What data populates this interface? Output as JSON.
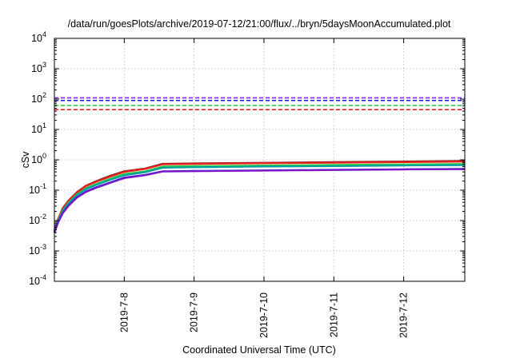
{
  "chart_data": {
    "type": "line",
    "title": "/data/run/goesPlots/archive/2019-07-12/21:00/flux/../bryn/5daysMoonAccumulated.plot",
    "xlabel": "Coordinated Universal Time (UTC)",
    "ylabel": "cSv",
    "y_scale": "log",
    "ylim": [
      0.0001,
      10000
    ],
    "xlim": [
      0.0,
      5.875
    ],
    "x_unit_note": "days from 2019-07-07 00:00 UTC",
    "grid": true,
    "y_ticks": [
      {
        "value": 0.0001,
        "base": "10",
        "exp": "-4"
      },
      {
        "value": 0.001,
        "base": "10",
        "exp": "-3"
      },
      {
        "value": 0.01,
        "base": "10",
        "exp": "-2"
      },
      {
        "value": 0.1,
        "base": "10",
        "exp": "-1"
      },
      {
        "value": 1,
        "base": "10",
        "exp": "0"
      },
      {
        "value": 10,
        "base": "10",
        "exp": "1"
      },
      {
        "value": 100,
        "base": "10",
        "exp": "2"
      },
      {
        "value": 1000,
        "base": "10",
        "exp": "3"
      },
      {
        "value": 10000,
        "base": "10",
        "exp": "4"
      }
    ],
    "x_ticks": [
      {
        "value": 1,
        "label": "2019-7-8"
      },
      {
        "value": 2,
        "label": "2019-7-9"
      },
      {
        "value": 3,
        "label": "2019-7-10"
      },
      {
        "value": 4,
        "label": "2019-7-11"
      },
      {
        "value": 5,
        "label": "2019-7-12"
      }
    ],
    "thresholds": [
      {
        "value": 110,
        "color": "#8b2be2"
      },
      {
        "value": 90,
        "color": "#1f1fd6"
      },
      {
        "value": 62,
        "color": "#2ecc40"
      },
      {
        "value": 45,
        "color": "#e8231f"
      }
    ],
    "series": [
      {
        "color": "#8b1a1a",
        "x": [
          0.0,
          0.05,
          0.12,
          0.2,
          0.32,
          0.45,
          0.6,
          0.8,
          1.0,
          1.3,
          1.55,
          2.0,
          3.0,
          4.0,
          5.0,
          5.875
        ],
        "y": [
          0.0045,
          0.011,
          0.026,
          0.045,
          0.085,
          0.14,
          0.2,
          0.3,
          0.42,
          0.52,
          0.74,
          0.76,
          0.8,
          0.84,
          0.88,
          0.92
        ]
      },
      {
        "color": "#e8231f",
        "x": [
          0.0,
          0.05,
          0.12,
          0.2,
          0.32,
          0.45,
          0.6,
          0.8,
          1.0,
          1.3,
          1.55,
          2.0,
          3.0,
          4.0,
          5.0,
          5.875
        ],
        "y": [
          0.0045,
          0.011,
          0.025,
          0.043,
          0.082,
          0.135,
          0.19,
          0.28,
          0.4,
          0.5,
          0.71,
          0.73,
          0.77,
          0.8,
          0.84,
          0.87
        ]
      },
      {
        "color": "#2ecc40",
        "x": [
          0.0,
          0.05,
          0.12,
          0.2,
          0.32,
          0.45,
          0.6,
          0.8,
          1.0,
          1.3,
          1.55,
          2.0,
          3.0,
          4.0,
          5.0,
          5.875
        ],
        "y": [
          0.0042,
          0.01,
          0.022,
          0.038,
          0.072,
          0.115,
          0.16,
          0.24,
          0.34,
          0.42,
          0.6,
          0.62,
          0.65,
          0.68,
          0.71,
          0.73
        ]
      },
      {
        "color": "#00a0a0",
        "x": [
          0.0,
          0.05,
          0.12,
          0.2,
          0.32,
          0.45,
          0.6,
          0.8,
          1.0,
          1.3,
          1.55,
          2.0,
          3.0,
          4.0,
          5.0,
          5.875
        ],
        "y": [
          0.0042,
          0.0095,
          0.021,
          0.036,
          0.068,
          0.108,
          0.15,
          0.22,
          0.31,
          0.39,
          0.55,
          0.57,
          0.6,
          0.62,
          0.65,
          0.67
        ]
      },
      {
        "color": "#1f1fd6",
        "x": [
          0.0,
          0.05,
          0.12,
          0.2,
          0.32,
          0.45,
          0.6,
          0.8,
          1.0,
          1.3,
          1.55,
          2.0,
          3.0,
          4.0,
          5.0,
          5.875
        ],
        "y": [
          0.004,
          0.0085,
          0.018,
          0.031,
          0.058,
          0.09,
          0.125,
          0.18,
          0.26,
          0.32,
          0.42,
          0.43,
          0.45,
          0.47,
          0.49,
          0.5
        ]
      },
      {
        "color": "#7a18c7",
        "x": [
          0.0,
          0.05,
          0.12,
          0.2,
          0.32,
          0.45,
          0.6,
          0.8,
          1.0,
          1.3,
          1.55,
          2.0,
          3.0,
          4.0,
          5.0,
          5.875
        ],
        "y": [
          0.0039,
          0.0083,
          0.0175,
          0.03,
          0.056,
          0.087,
          0.12,
          0.175,
          0.25,
          0.31,
          0.41,
          0.42,
          0.44,
          0.46,
          0.48,
          0.49
        ]
      }
    ]
  }
}
